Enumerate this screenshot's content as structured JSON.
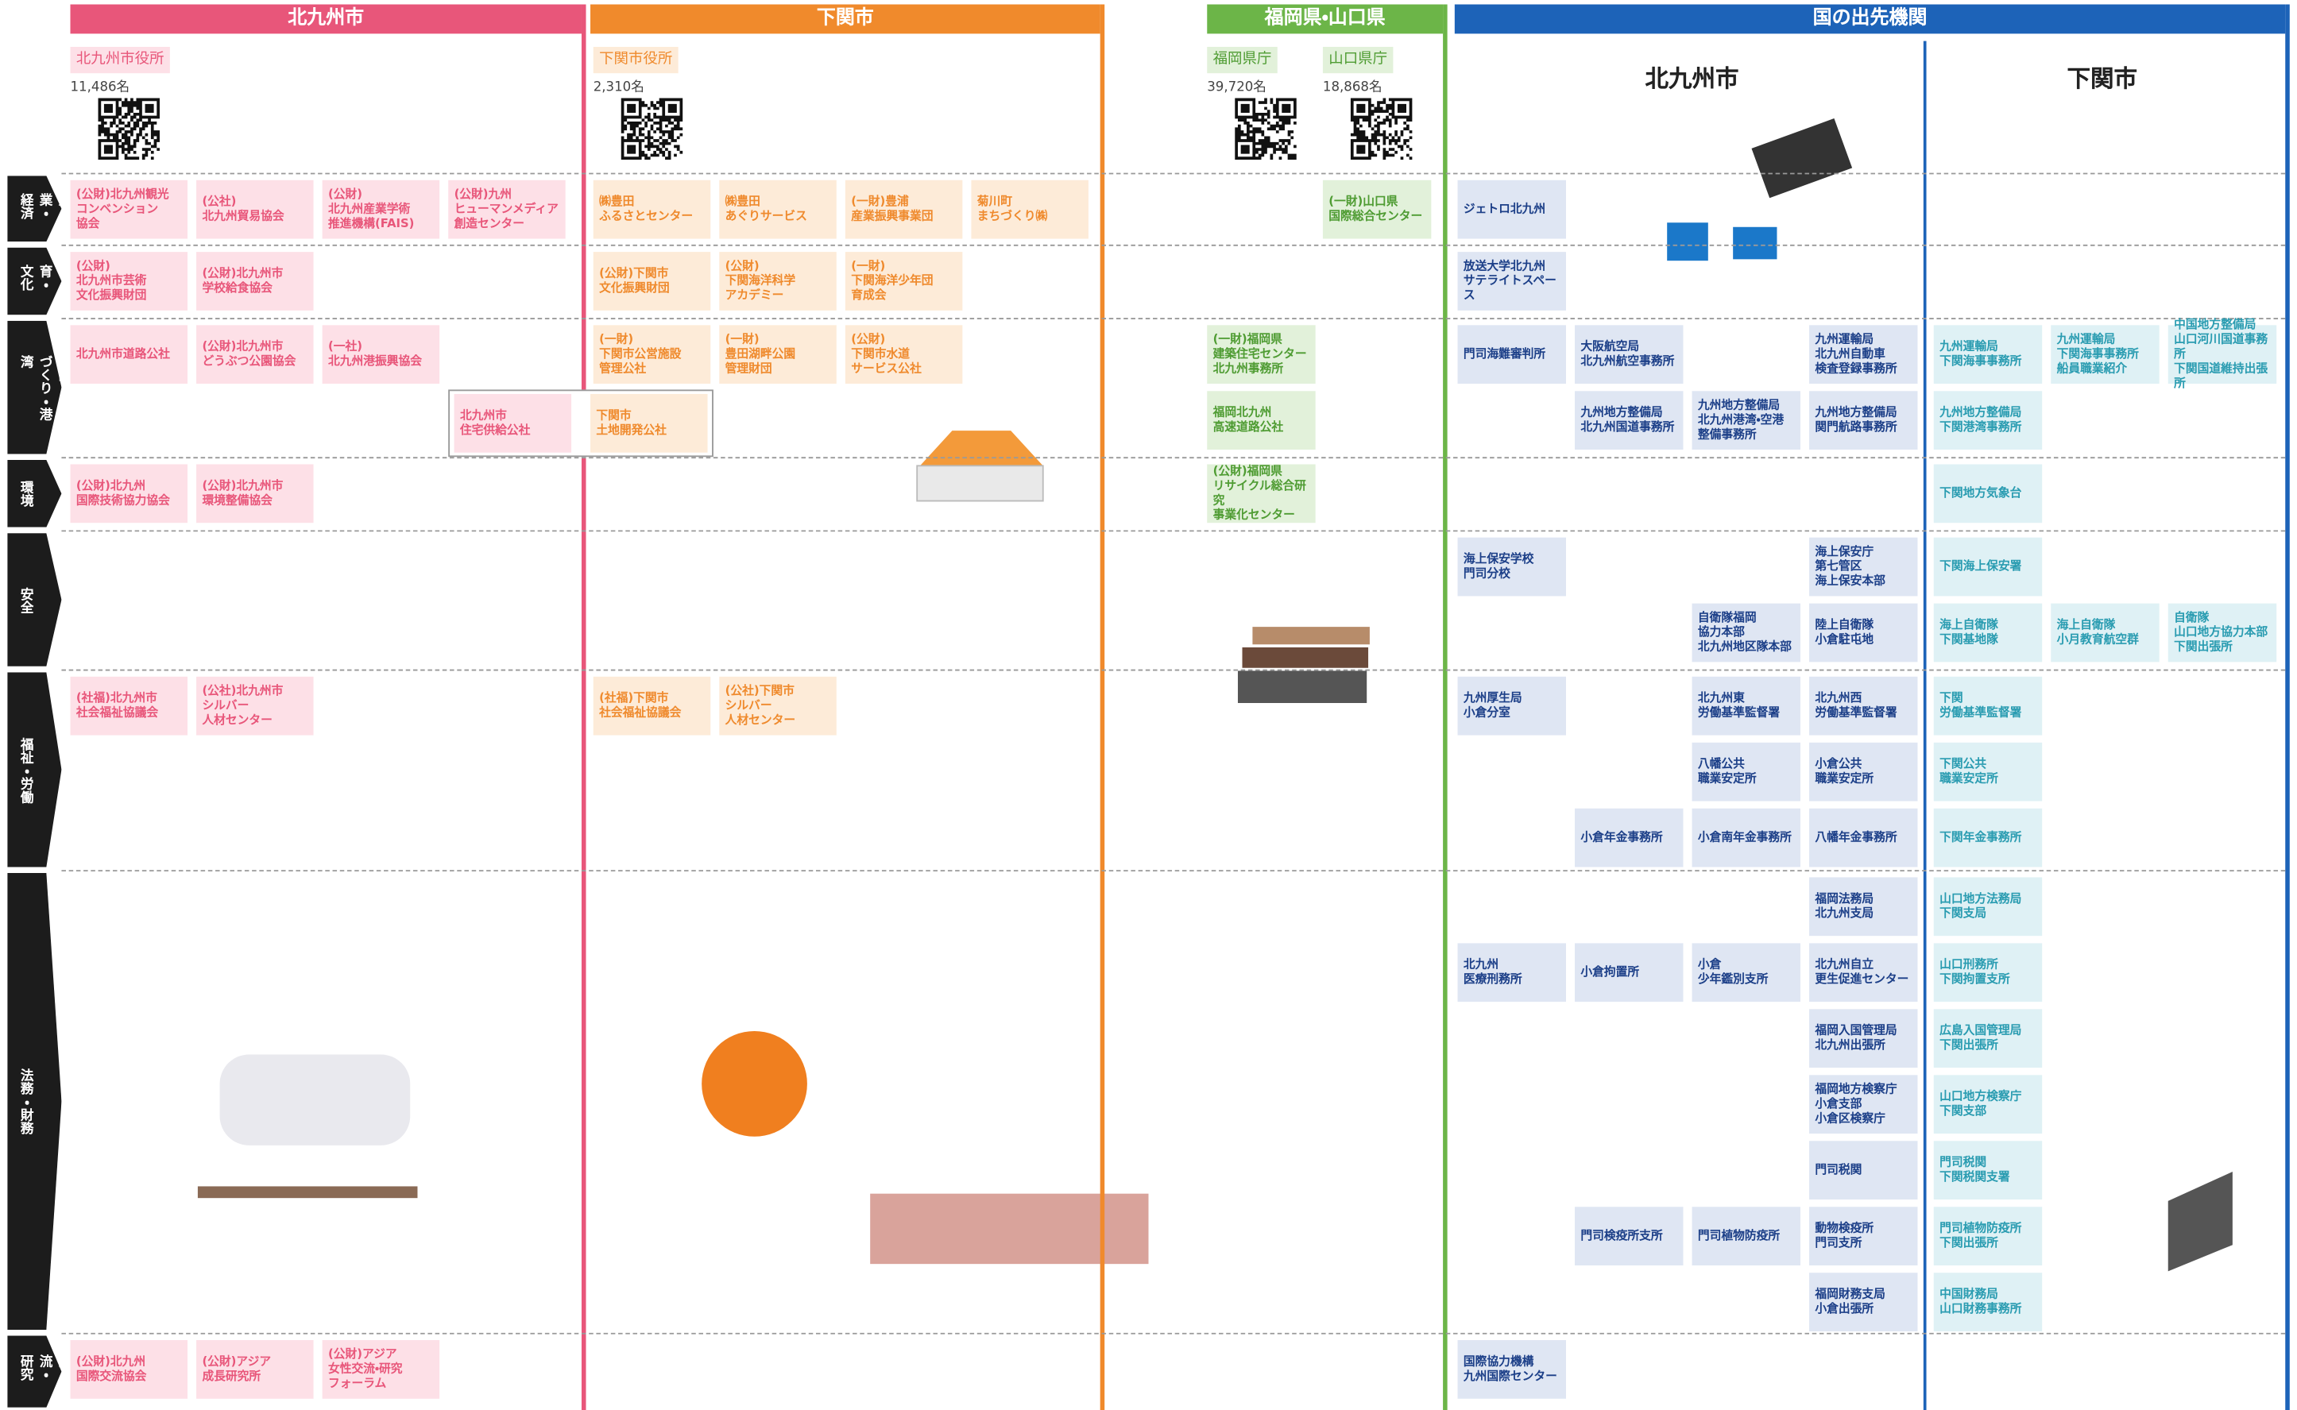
{
  "header": {
    "columns": [
      {
        "title": "北九州市",
        "offices": [
          {
            "name": "北九州市役所",
            "staff": "11,486名"
          }
        ]
      },
      {
        "title": "下関市",
        "offices": [
          {
            "name": "下関市役所",
            "staff": "2,310名"
          }
        ]
      },
      {
        "title": "福岡県・山口県",
        "offices": [
          {
            "name": "福岡県庁",
            "staff": "39,720名"
          },
          {
            "name": "山口県庁",
            "staff": "18,868名"
          }
        ]
      },
      {
        "title": "国の出先機関",
        "subheaders": [
          "北九州市",
          "下関市"
        ]
      }
    ]
  },
  "rows": [
    {
      "label": "産業・経済",
      "kitakyushu": [
        [
          "(公財)北九州観光\nコンベンション\n協会",
          "(公社)\n北九州貿易協会",
          "(公財)\n北九州産業学術\n推進機構(FAIS)",
          "(公財)九州\nヒューマンメディア\n創造センター"
        ]
      ],
      "shimonoseki": [
        [
          "㈱豊田\nふるさとセンター",
          "㈱豊田\nあぐりサービス",
          "(一財)豊浦\n産業振興事業団",
          "菊川町\nまちづくり㈱"
        ]
      ],
      "prefecture": [
        [
          null,
          "(一財)山口県\n国際総合センター"
        ]
      ],
      "national_kitakyushu": [
        [
          "ジェトロ北九州"
        ]
      ]
    },
    {
      "label": "教育・文化",
      "kitakyushu": [
        [
          "(公財)\n北九州市芸術\n文化振興財団",
          "(公財)北九州市\n学校給食協会"
        ]
      ],
      "shimonoseki": [
        [
          "(公財)下関市\n文化振興財団",
          "(公財)\n下関海洋科学\nアカデミー",
          "(一財)\n下関海洋少年団\n育成会"
        ]
      ],
      "national_kitakyushu": [
        [
          "放送大学北九州\nサテライトスペース"
        ]
      ]
    },
    {
      "label": "建設・まちづくり・港湾",
      "kitakyushu": [
        [
          "北九州市道路公社",
          "(公財)北九州市\nどうぶつ公園協会",
          "(一社)\n北九州港振興協会"
        ]
      ],
      "shimonoseki": [
        [
          "(一財)\n下関市公営施設\n管理公社",
          "(一財)\n豊田湖畔公園\n管理財団",
          "(公財)\n下関市水道\nサービス公社"
        ]
      ],
      "joint": [
        "北九州市\n住宅供給公社",
        "下関市\n土地開発公社"
      ],
      "prefecture": [
        [
          "(一財)福岡県\n建築住宅センター\n北九州事務所"
        ],
        [
          "福岡北九州\n高速道路公社"
        ]
      ],
      "national_kitakyushu": [
        [
          "門司海難審判所",
          "大阪航空局\n北九州航空事務所",
          null,
          "九州運輸局\n北九州自動車\n検査登録事務所"
        ],
        [
          null,
          "九州地方整備局\n北九州国道事務所",
          "九州地方整備局\n北九州港湾・空港\n整備事務所",
          "九州地方整備局\n関門航路事務所"
        ]
      ],
      "national_shimonoseki": [
        [
          "九州運輸局\n下関海事事務所",
          "九州運輸局\n下関海事事務所\n船員職業紹介",
          "中国地方整備局\n山口河川国道事務所\n下関国道維持出張所"
        ],
        [
          "九州地方整備局\n下関港湾事務所"
        ]
      ]
    },
    {
      "label": "環境",
      "kitakyushu": [
        [
          "(公財)北九州\n国際技術協力協会",
          "(公財)北九州市\n環境整備協会"
        ]
      ],
      "prefecture": [
        [
          "(公財)福岡県\nリサイクル総合研究\n事業化センター"
        ]
      ],
      "national_shimonoseki": [
        [
          "下関地方気象台"
        ]
      ]
    },
    {
      "label": "安全",
      "national_kitakyushu": [
        [
          "海上保安学校\n門司分校",
          null,
          null,
          "海上保安庁\n第七管区\n海上保安本部"
        ],
        [
          null,
          null,
          "自衛隊福岡\n協力本部\n北九州地区隊本部",
          "陸上自衛隊\n小倉駐屯地"
        ]
      ],
      "national_shimonoseki": [
        [
          "下関海上保安署"
        ],
        [
          "海上自衛隊\n下関基地隊",
          "海上自衛隊\n小月教育航空群",
          "自衛隊\n山口地方協力本部\n下関出張所"
        ]
      ]
    },
    {
      "label": "福祉・労働",
      "kitakyushu": [
        [
          "(社福)北九州市\n社会福祉協議会",
          "(公社)北九州市\nシルバー\n人材センター"
        ]
      ],
      "shimonoseki": [
        [
          "(社福)下関市\n社会福祉協議会",
          "(公社)下関市\nシルバー\n人材センター"
        ]
      ],
      "national_kitakyushu": [
        [
          "九州厚生局\n小倉分室",
          null,
          "北九州東\n労働基準監督署",
          "北九州西\n労働基準監督署"
        ],
        [
          null,
          null,
          "八幡公共\n職業安定所",
          "小倉公共\n職業安定所"
        ],
        [
          null,
          "小倉年金事務所",
          "小倉南年金事務所",
          "八幡年金事務所"
        ]
      ],
      "national_shimonoseki": [
        [
          "下関\n労働基準監督署"
        ],
        [
          "下関公共\n職業安定所"
        ],
        [
          "下関年金事務所"
        ]
      ]
    },
    {
      "label": "法務・財務",
      "national_kitakyushu": [
        [
          null,
          null,
          null,
          "福岡法務局\n北九州支局"
        ],
        [
          "北九州\n医療刑務所",
          "小倉拘置所",
          "小倉\n少年鑑別支所",
          "北九州自立\n更生促進センター"
        ],
        [
          null,
          null,
          null,
          "福岡入国管理局\n北九州出張所"
        ],
        [
          null,
          null,
          null,
          "福岡地方検察庁\n小倉支部\n小倉区検察庁"
        ],
        [
          null,
          null,
          null,
          "門司税関"
        ],
        [
          null,
          "門司検疫所支所",
          "門司植物防疫所",
          "動物検疫所\n門司支所"
        ],
        [
          null,
          null,
          null,
          "福岡財務支局\n小倉出張所"
        ]
      ],
      "national_shimonoseki": [
        [
          "山口地方法務局\n下関支局"
        ],
        [
          "山口刑務所\n下関拘置支所"
        ],
        [
          "広島入国管理局\n下関出張所"
        ],
        [
          "山口地方検察庁\n下関支部"
        ],
        [
          "門司税関\n下関税関支署"
        ],
        [
          "門司植物防疫所\n下関出張所"
        ],
        [
          "中国財務局\n山口財務事務所"
        ]
      ]
    },
    {
      "label": "国際交流・研究",
      "kitakyushu": [
        [
          "(公財)北九州\n国際交流協会",
          "(公財)アジア\n成長研究所",
          "(公財)アジア\n女性交流・研究\nフォーラム"
        ]
      ],
      "national_kitakyushu": [
        [
          "国際協力機構\n九州国際センター"
        ]
      ]
    }
  ]
}
